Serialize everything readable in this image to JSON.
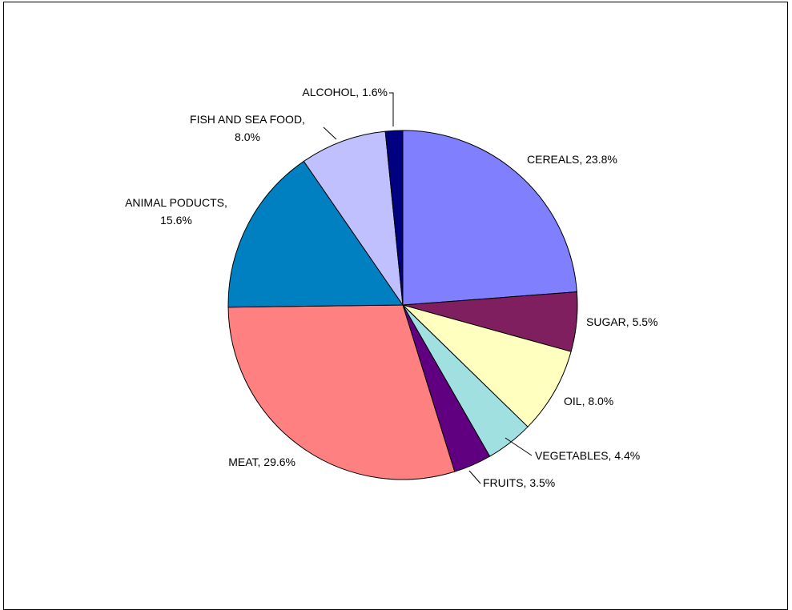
{
  "chart_data": {
    "type": "pie",
    "title": "",
    "slices": [
      {
        "label": "CEREALS",
        "value": 23.8,
        "value_label": "23.8%",
        "color": "#8080ff"
      },
      {
        "label": "SUGAR",
        "value": 5.5,
        "value_label": "5.5%",
        "color": "#7f1f5f"
      },
      {
        "label": "OIL",
        "value": 8.0,
        "value_label": "8.0%",
        "color": "#ffffc0"
      },
      {
        "label": "VEGETABLES",
        "value": 4.4,
        "value_label": "4.4%",
        "color": "#a0e0e0"
      },
      {
        "label": "FRUITS",
        "value": 3.5,
        "value_label": "3.5%",
        "color": "#600080"
      },
      {
        "label": "MEAT",
        "value": 29.6,
        "value_label": "29.6%",
        "color": "#ff8080"
      },
      {
        "label": "ANIMAL PODUCTS",
        "value": 15.6,
        "value_label": "15.6%",
        "color": "#0080c0"
      },
      {
        "label": "FISH AND SEA FOOD",
        "value": 8.0,
        "value_label": "8.0%",
        "color": "#c0c0ff"
      },
      {
        "label": "ALCOHOL",
        "value": 1.6,
        "value_label": "1.6%",
        "color": "#000080"
      }
    ],
    "legend": "none",
    "start_angle": "12 o'clock",
    "direction": "clockwise"
  }
}
